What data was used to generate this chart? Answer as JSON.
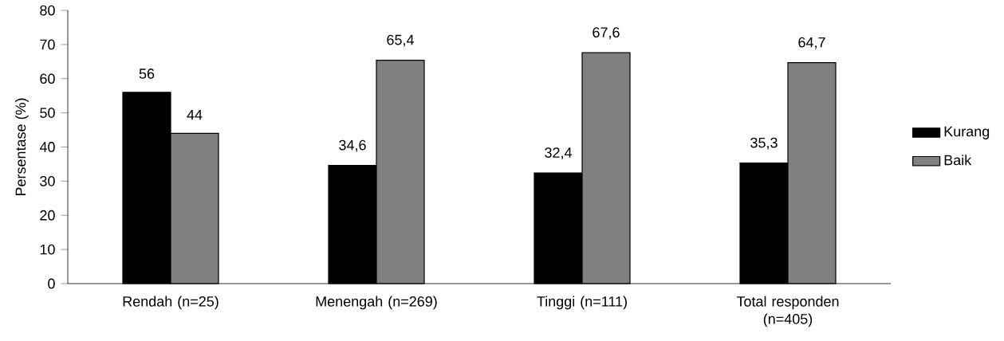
{
  "chart_data": {
    "type": "bar",
    "ylabel": "Persentase (%)",
    "categories": [
      "Rendah (n=25)",
      "Menengah (n=269)",
      "Tinggi (n=111)",
      "Total responden (n=405)"
    ],
    "series": [
      {
        "name": "Kurang",
        "color": "#000000",
        "values": [
          56,
          34.6,
          32.4,
          35.3
        ],
        "value_labels": [
          "56",
          "34,6",
          "32,4",
          "35,3"
        ]
      },
      {
        "name": "Baik",
        "color": "#808080",
        "values": [
          44,
          65.4,
          67.6,
          64.7
        ],
        "value_labels": [
          "44",
          "65,4",
          "67,6",
          "64,7"
        ]
      }
    ],
    "ylim": [
      0,
      80
    ],
    "yticks": [
      0,
      10,
      20,
      30,
      40,
      50,
      60,
      70,
      80
    ],
    "grid": false,
    "legend": "right"
  }
}
